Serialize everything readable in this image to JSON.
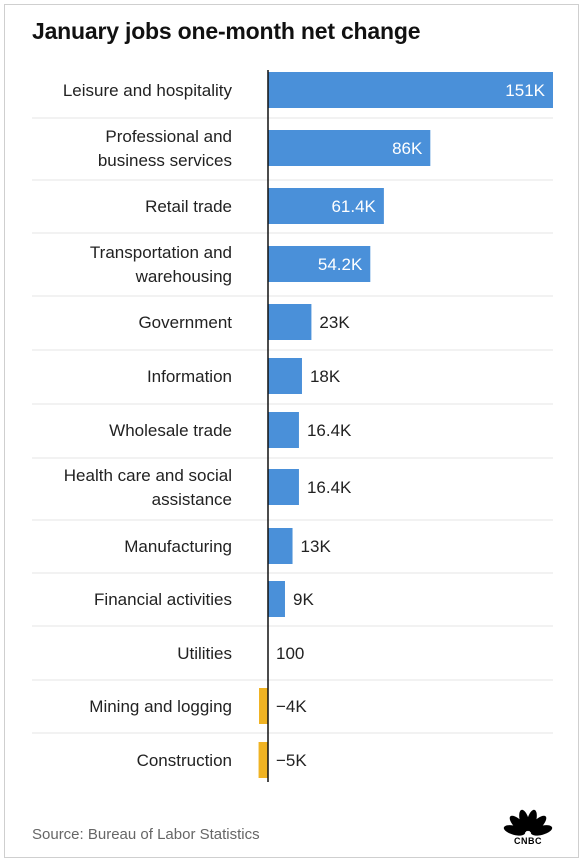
{
  "title": "January jobs one-month net change",
  "source": "Source: Bureau of Labor Statistics",
  "logo_text": "CNBC",
  "colors": {
    "positive": "#4a90d9",
    "negative": "#f0b323",
    "grid": "#e4e4e4",
    "axis": "#111111"
  },
  "chart_data": {
    "type": "bar",
    "orientation": "horizontal",
    "title": "January jobs one-month net change",
    "xlim": [
      -5000,
      151000
    ],
    "categories": [
      "Leisure and hospitality",
      "Professional and business services",
      "Retail trade",
      "Transportation and warehousing",
      "Government",
      "Information",
      "Wholesale trade",
      "Health care and social assistance",
      "Manufacturing",
      "Financial activities",
      "Utilities",
      "Mining and logging",
      "Construction"
    ],
    "category_lines": [
      [
        "Leisure and hospitality"
      ],
      [
        "Professional and",
        "business services"
      ],
      [
        "Retail trade"
      ],
      [
        "Transportation and",
        "warehousing"
      ],
      [
        "Government"
      ],
      [
        "Information"
      ],
      [
        "Wholesale trade"
      ],
      [
        "Health care and social",
        "assistance"
      ],
      [
        "Manufacturing"
      ],
      [
        "Financial activities"
      ],
      [
        "Utilities"
      ],
      [
        "Mining and logging"
      ],
      [
        "Construction"
      ]
    ],
    "values": [
      151000,
      86000,
      61400,
      54200,
      23000,
      18000,
      16400,
      16400,
      13000,
      9000,
      100,
      -4000,
      -5000
    ],
    "labels": [
      "151K",
      "86K",
      "61.4K",
      "54.2K",
      "23K",
      "18K",
      "16.4K",
      "16.4K",
      "13K",
      "9K",
      "100",
      "−4K",
      "−5K"
    ],
    "label_inside": [
      true,
      true,
      true,
      true,
      false,
      false,
      false,
      false,
      false,
      false,
      false,
      false,
      false
    ]
  }
}
